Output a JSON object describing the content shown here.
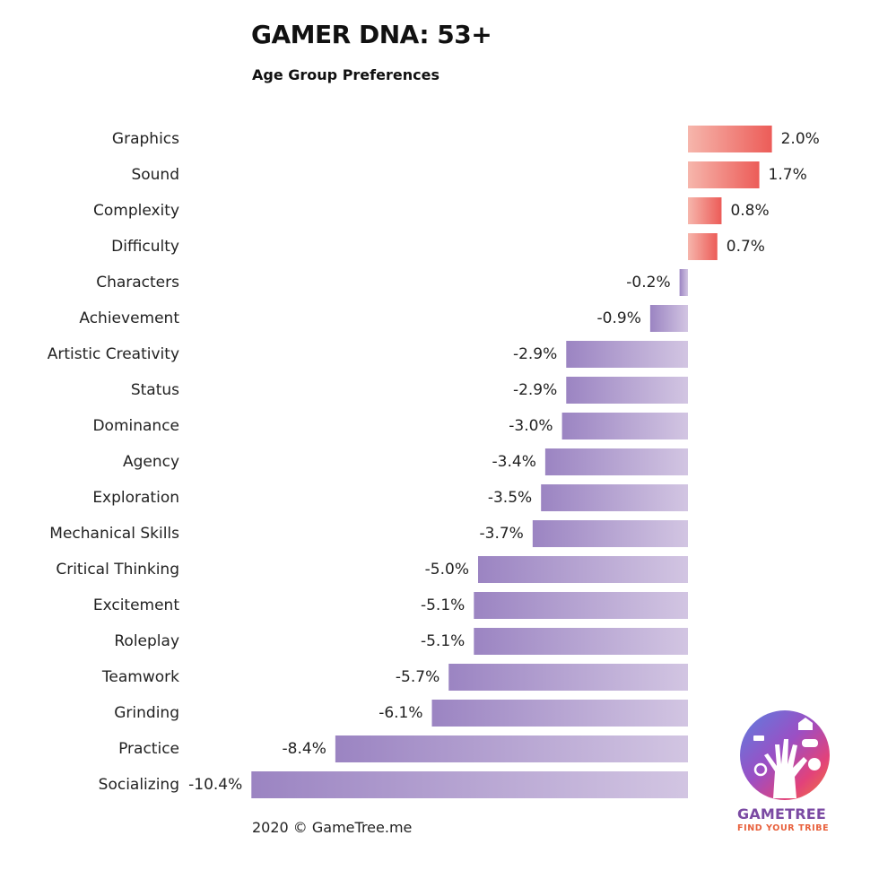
{
  "header": {
    "title": "GAMER DNA: 53+",
    "subtitle": "Age Group Preferences"
  },
  "footer": {
    "copyright": "2020 © GameTree.me"
  },
  "logo": {
    "brand": "GAMETREE",
    "tagline": "FIND YOUR TRIBE",
    "icon": "gametree-tree-hand-icon"
  },
  "colors": {
    "positive_light": "#f6b6ac",
    "positive_dark": "#ec5c58",
    "negative_light": "#d2c5e2",
    "negative_dark": "#9b84c2"
  },
  "chart_data": {
    "type": "bar",
    "orientation": "horizontal",
    "title": "GAMER DNA: 53+",
    "subtitle": "Age Group Preferences",
    "xlabel": "",
    "ylabel": "",
    "xlim": [
      -10.4,
      2.0
    ],
    "grid": false,
    "categories": [
      "Graphics",
      "Sound",
      "Complexity",
      "Difficulty",
      "Characters",
      "Achievement",
      "Artistic Creativity",
      "Status",
      "Dominance",
      "Agency",
      "Exploration",
      "Mechanical Skills",
      "Critical Thinking",
      "Excitement",
      "Roleplay",
      "Teamwork",
      "Grinding",
      "Practice",
      "Socializing"
    ],
    "values": [
      2.0,
      1.7,
      0.8,
      0.7,
      -0.2,
      -0.9,
      -2.9,
      -2.9,
      -3.0,
      -3.4,
      -3.5,
      -3.7,
      -5.0,
      -5.1,
      -5.1,
      -5.7,
      -6.1,
      -8.4,
      -10.4
    ],
    "value_labels": [
      "2.0%",
      "1.7%",
      "0.8%",
      "0.7%",
      "-0.2%",
      "-0.9%",
      "-2.9%",
      "-2.9%",
      "-3.0%",
      "-3.4%",
      "-3.5%",
      "-3.7%",
      "-5.0%",
      "-5.1%",
      "-5.1%",
      "-5.7%",
      "-6.1%",
      "-8.4%",
      "-10.4%"
    ]
  }
}
